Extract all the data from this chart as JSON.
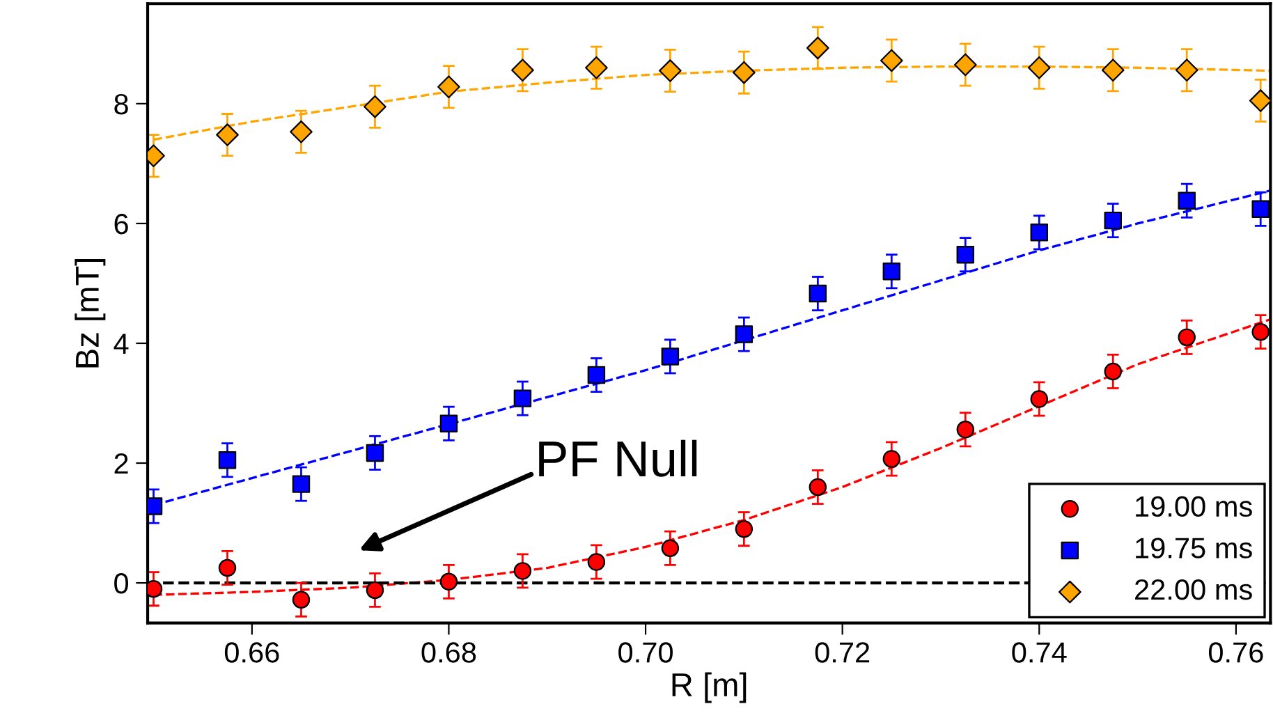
{
  "chart_data": {
    "type": "scatter",
    "xlabel": "R [m]",
    "ylabel": "Bz [mT]",
    "xlim": [
      0.6494,
      0.7635
    ],
    "ylim": [
      -0.67,
      9.67
    ],
    "xticks": [
      {
        "value": 0.66,
        "label": "0.66"
      },
      {
        "value": 0.68,
        "label": "0.68"
      },
      {
        "value": 0.7,
        "label": "0.70"
      },
      {
        "value": 0.72,
        "label": "0.72"
      },
      {
        "value": 0.74,
        "label": "0.74"
      },
      {
        "value": 0.76,
        "label": "0.76"
      }
    ],
    "yticks": [
      0,
      2,
      4,
      6,
      8
    ],
    "grid": false,
    "legend": "bottom right",
    "x": [
      0.65,
      0.6575,
      0.665,
      0.6725,
      0.68,
      0.6875,
      0.695,
      0.7025,
      0.71,
      0.7175,
      0.725,
      0.7325,
      0.74,
      0.7475,
      0.755,
      0.7625
    ],
    "series": [
      {
        "name": "19.00 ms",
        "color": "#ff0000",
        "marker": "circle",
        "values": [
          -0.1,
          0.25,
          -0.28,
          -0.12,
          0.02,
          0.2,
          0.35,
          0.58,
          0.9,
          1.6,
          2.07,
          2.56,
          3.07,
          3.53,
          4.1,
          4.19
        ],
        "errors": [
          0.28,
          0.28,
          0.28,
          0.28,
          0.28,
          0.28,
          0.28,
          0.28,
          0.28,
          0.28,
          0.28,
          0.28,
          0.28,
          0.28,
          0.28,
          0.28
        ]
      },
      {
        "name": "19.75 ms",
        "color": "#0000ff",
        "marker": "square",
        "values": [
          1.28,
          2.05,
          1.65,
          2.17,
          2.66,
          3.08,
          3.47,
          3.78,
          4.15,
          4.83,
          5.2,
          5.48,
          5.85,
          6.05,
          6.38,
          6.24
        ],
        "errors": [
          0.28,
          0.28,
          0.28,
          0.28,
          0.28,
          0.28,
          0.28,
          0.28,
          0.28,
          0.28,
          0.28,
          0.28,
          0.28,
          0.28,
          0.28,
          0.28
        ]
      },
      {
        "name": "22.00 ms",
        "color": "#ffa500",
        "marker": "diamond",
        "values": [
          7.13,
          7.48,
          7.53,
          7.95,
          8.28,
          8.56,
          8.6,
          8.55,
          8.52,
          8.93,
          8.72,
          8.65,
          8.6,
          8.56,
          8.56,
          8.05
        ],
        "errors": [
          0.35,
          0.35,
          0.35,
          0.35,
          0.35,
          0.35,
          0.35,
          0.35,
          0.35,
          0.35,
          0.35,
          0.35,
          0.35,
          0.35,
          0.35,
          0.35
        ]
      },
      {
        "type": "line",
        "color": "#ff0000",
        "line_style": "dashed",
        "x": [
          0.65,
          0.66,
          0.67,
          0.68,
          0.69,
          0.7,
          0.71,
          0.72,
          0.73,
          0.74,
          0.75,
          0.7635
        ],
        "values": [
          -0.2,
          -0.15,
          -0.08,
          0.05,
          0.25,
          0.6,
          1.05,
          1.6,
          2.25,
          2.95,
          3.65,
          4.4
        ]
      },
      {
        "type": "line",
        "color": "#0000ff",
        "line_style": "dashed",
        "x": [
          0.65,
          0.66,
          0.67,
          0.68,
          0.69,
          0.7,
          0.71,
          0.72,
          0.73,
          0.74,
          0.75,
          0.7635
        ],
        "values": [
          1.3,
          1.75,
          2.2,
          2.65,
          3.1,
          3.55,
          4.05,
          4.55,
          5.05,
          5.55,
          6.0,
          6.55
        ]
      },
      {
        "type": "line",
        "color": "#ffa500",
        "line_style": "dashed",
        "x": [
          0.65,
          0.66,
          0.67,
          0.68,
          0.69,
          0.7,
          0.71,
          0.72,
          0.73,
          0.74,
          0.75,
          0.7635
        ],
        "values": [
          7.4,
          7.7,
          7.95,
          8.2,
          8.35,
          8.48,
          8.55,
          8.6,
          8.62,
          8.62,
          8.6,
          8.55
        ]
      }
    ],
    "ref_lines": [
      {
        "axis": "y",
        "value": 0,
        "color": "#000000",
        "line_style": "dashed"
      }
    ],
    "annotations": [
      "PF Null"
    ]
  }
}
